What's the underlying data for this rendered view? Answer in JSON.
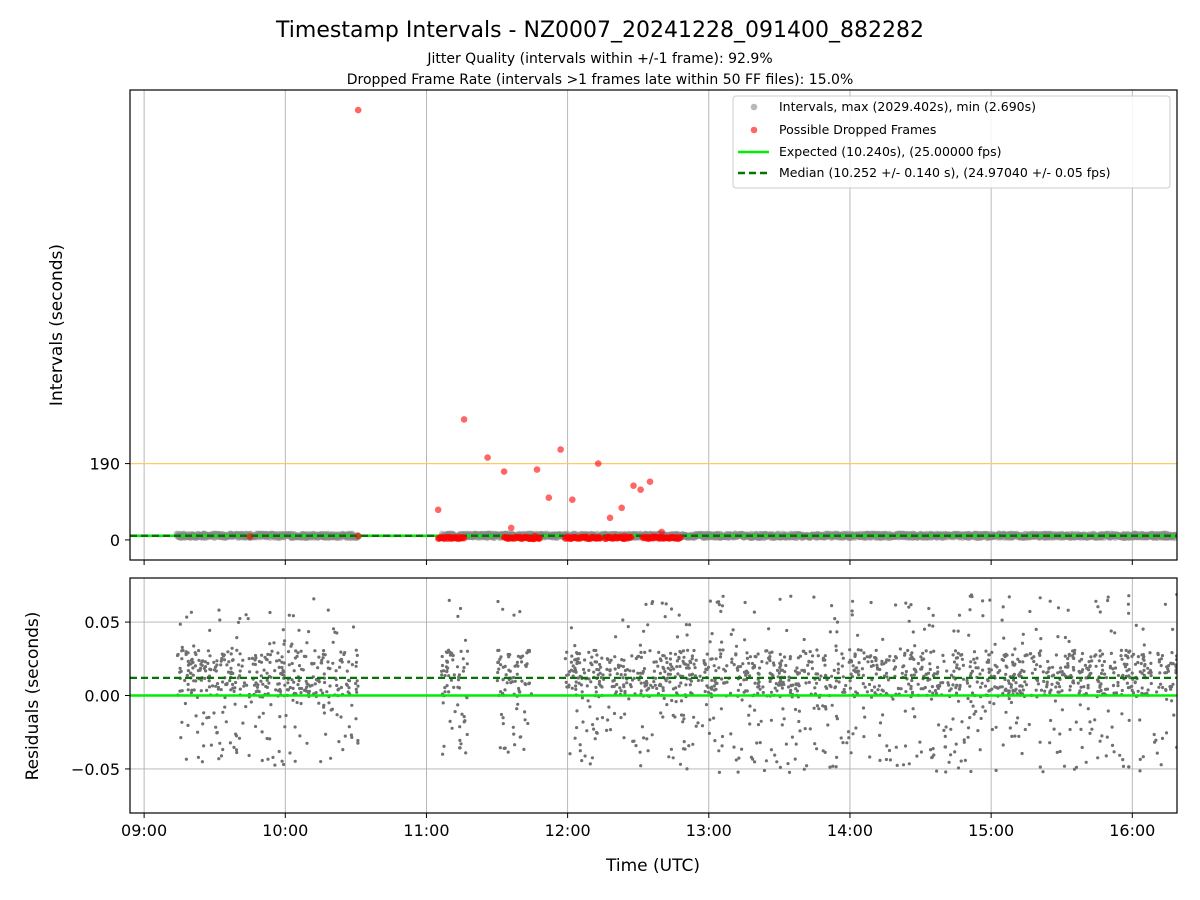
{
  "chart_data": [
    {
      "type": "scatter",
      "title": "Timestamp Intervals - NZ0007_20241228_091400_882282",
      "subtitle_lines": [
        "Jitter Quality (intervals within +/-1 frame): 92.9%",
        "Dropped Frame Rate (intervals >1 frames late within 50 FF files): 15.0%"
      ],
      "ylabel": "Intervals (seconds)",
      "x_axis": "time",
      "xlim": [
        "08:54",
        "16:19"
      ],
      "ylim": [
        -50,
        1120
      ],
      "yticks": [
        0,
        190
      ],
      "threshold_line": {
        "value": 190,
        "color": "#ffc966"
      },
      "grid": "vertical",
      "legend_placement": "top-right",
      "legend": [
        "Intervals, max (2029.402s), min (2.690s)",
        "Possible Dropped Frames",
        "Expected (10.240s), (25.00000 fps)",
        "Median (10.252 +/- 0.140 s), (24.97040 +/- 0.05 fps)"
      ],
      "series": [
        {
          "name": "Intervals, max (2029.402s), min (2.690s)",
          "color": "#888888",
          "note_on_data": "dense band of points at ~10 s spanning 09:14-10:31, 11:05-12:46 and 12:46-16:19",
          "segments": [
            {
              "x_start": "09:14",
              "x_end": "10:31",
              "y": 10.25
            },
            {
              "x_start": "11:06",
              "x_end": "12:46",
              "y": 10.25
            },
            {
              "x_start": "12:46",
              "x_end": "16:19",
              "y": 10.25
            }
          ]
        },
        {
          "name": "Possible Dropped Frames",
          "color": "#ff0000",
          "points": [
            {
              "x": "09:45",
              "y": 8
            },
            {
              "x": "10:31",
              "y": 10
            },
            {
              "x": "10:31",
              "y": 1070
            },
            {
              "x": "11:05",
              "y": 75
            },
            {
              "x": "11:16",
              "y": 300
            },
            {
              "x": "11:26",
              "y": 205
            },
            {
              "x": "11:33",
              "y": 170
            },
            {
              "x": "11:36",
              "y": 30
            },
            {
              "x": "11:42",
              "y": 5
            },
            {
              "x": "11:46",
              "y": 10
            },
            {
              "x": "11:47",
              "y": 175
            },
            {
              "x": "11:52",
              "y": 105
            },
            {
              "x": "11:57",
              "y": 225
            },
            {
              "x": "12:02",
              "y": 100
            },
            {
              "x": "12:13",
              "y": 190
            },
            {
              "x": "12:18",
              "y": 55
            },
            {
              "x": "12:23",
              "y": 80
            },
            {
              "x": "12:28",
              "y": 135
            },
            {
              "x": "12:31",
              "y": 125
            },
            {
              "x": "12:35",
              "y": 145
            },
            {
              "x": "12:40",
              "y": 20
            },
            {
              "x": "12:24",
              "y": 10
            },
            {
              "x": "12:36",
              "y": 8
            },
            {
              "x": "11:48",
              "y": 5
            }
          ],
          "clusters": [
            {
              "x_start": "11:05",
              "x_end": "11:16",
              "y": 5
            },
            {
              "x_start": "11:33",
              "x_end": "11:48",
              "y": 5
            },
            {
              "x_start": "11:59",
              "x_end": "12:14",
              "y": 5
            },
            {
              "x_start": "12:16",
              "x_end": "12:27",
              "y": 5
            },
            {
              "x_start": "12:32",
              "x_end": "12:37",
              "y": 5
            },
            {
              "x_start": "12:37",
              "x_end": "12:48",
              "y": 5
            }
          ]
        },
        {
          "name": "Expected (10.240s), (25.00000 fps)",
          "style": "solid",
          "color": "#00ee00",
          "y": 10.24
        },
        {
          "name": "Median (10.252 +/- 0.140 s), (24.97040 +/- 0.05 fps)",
          "style": "dashed",
          "color": "#007700",
          "y": 10.252
        }
      ]
    },
    {
      "type": "scatter",
      "ylabel": "Residuals (seconds)",
      "xlabel": "Time (UTC)",
      "x_axis": "time",
      "xlim": [
        "08:54",
        "16:19"
      ],
      "xticks": [
        "09:00",
        "10:00",
        "11:00",
        "12:00",
        "13:00",
        "14:00",
        "15:00",
        "16:00"
      ],
      "ylim": [
        -0.08,
        0.08
      ],
      "yticks": [
        0.05,
        0.0,
        -0.05
      ],
      "ytick_labels": [
        "0.05",
        "0.00",
        "−0.05"
      ],
      "grid": "both",
      "series": [
        {
          "name": "Residuals",
          "color": "#707070",
          "note_on_data": "many small grey points; bulk between +0.00 and +0.03, tail down to -0.05, sparse outliers up to +0.07",
          "segments": [
            {
              "x_start": "09:14",
              "x_end": "10:31",
              "y_center": 0.015,
              "y_spread": [
                -0.048,
                0.066
              ]
            },
            {
              "x_start": "11:06",
              "x_end": "11:18",
              "y_center": 0.015,
              "y_spread": [
                -0.04,
                0.065
              ]
            },
            {
              "x_start": "11:30",
              "x_end": "11:45",
              "y_center": 0.015,
              "y_spread": [
                -0.04,
                0.067
              ]
            },
            {
              "x_start": "11:59",
              "x_end": "12:46",
              "y_center": 0.015,
              "y_spread": [
                -0.048,
                0.065
              ]
            },
            {
              "x_start": "12:46",
              "x_end": "16:19",
              "y_center": 0.015,
              "y_spread": [
                -0.053,
                0.069
              ]
            }
          ]
        },
        {
          "name": "Expected",
          "style": "solid",
          "color": "#00ee00",
          "y": 0.0
        },
        {
          "name": "Median",
          "style": "dashed",
          "color": "#007700",
          "y": 0.012
        }
      ]
    }
  ]
}
